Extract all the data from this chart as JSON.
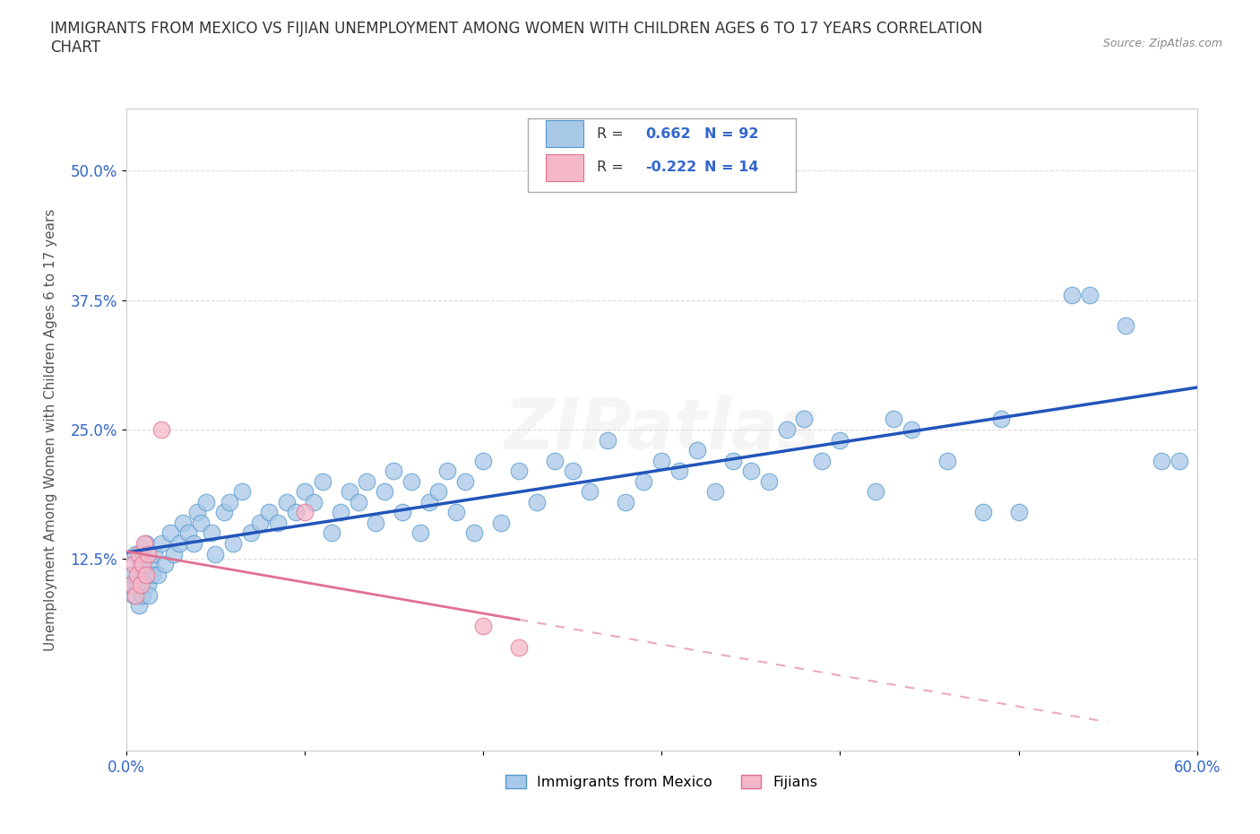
{
  "title": "IMMIGRANTS FROM MEXICO VS FIJIAN UNEMPLOYMENT AMONG WOMEN WITH CHILDREN AGES 6 TO 17 YEARS CORRELATION\nCHART",
  "source": "Source: ZipAtlas.com",
  "ylabel": "Unemployment Among Women with Children Ages 6 to 17 years",
  "xlim": [
    0.0,
    0.6
  ],
  "ylim": [
    -0.06,
    0.56
  ],
  "yticks": [
    0.125,
    0.25,
    0.375,
    0.5
  ],
  "ytick_labels": [
    "12.5%",
    "25.0%",
    "37.5%",
    "50.0%"
  ],
  "xticks": [
    0.0,
    0.1,
    0.2,
    0.3,
    0.4,
    0.5,
    0.6
  ],
  "xtick_labels": [
    "0.0%",
    "",
    "",
    "",
    "",
    "",
    "60.0%"
  ],
  "mexico_color": "#a8c8e8",
  "mexico_edge": "#5599cc",
  "fijian_color": "#f5b8c8",
  "fijian_edge": "#e07090",
  "mexico_line_color": "#2255bb",
  "fijian_line_color": "#e07090",
  "R_mexico": 0.662,
  "N_mexico": 92,
  "R_fijian": -0.222,
  "N_fijian": 14,
  "watermark": "ZIPatlas",
  "legend_R_color": "#3366cc",
  "background_color": "#ffffff",
  "grid_color": "#cccccc",
  "mexico_points": [
    [
      0.002,
      0.1
    ],
    [
      0.003,
      0.11
    ],
    [
      0.004,
      0.09
    ],
    [
      0.005,
      0.13
    ],
    [
      0.006,
      0.1
    ],
    [
      0.007,
      0.08
    ],
    [
      0.008,
      0.12
    ],
    [
      0.009,
      0.09
    ],
    [
      0.01,
      0.11
    ],
    [
      0.011,
      0.14
    ],
    [
      0.012,
      0.1
    ],
    [
      0.013,
      0.09
    ],
    [
      0.014,
      0.12
    ],
    [
      0.015,
      0.11
    ],
    [
      0.016,
      0.13
    ],
    [
      0.018,
      0.11
    ],
    [
      0.02,
      0.14
    ],
    [
      0.022,
      0.12
    ],
    [
      0.025,
      0.15
    ],
    [
      0.027,
      0.13
    ],
    [
      0.03,
      0.14
    ],
    [
      0.032,
      0.16
    ],
    [
      0.035,
      0.15
    ],
    [
      0.038,
      0.14
    ],
    [
      0.04,
      0.17
    ],
    [
      0.042,
      0.16
    ],
    [
      0.045,
      0.18
    ],
    [
      0.048,
      0.15
    ],
    [
      0.05,
      0.13
    ],
    [
      0.055,
      0.17
    ],
    [
      0.058,
      0.18
    ],
    [
      0.06,
      0.14
    ],
    [
      0.065,
      0.19
    ],
    [
      0.07,
      0.15
    ],
    [
      0.075,
      0.16
    ],
    [
      0.08,
      0.17
    ],
    [
      0.085,
      0.16
    ],
    [
      0.09,
      0.18
    ],
    [
      0.095,
      0.17
    ],
    [
      0.1,
      0.19
    ],
    [
      0.105,
      0.18
    ],
    [
      0.11,
      0.2
    ],
    [
      0.115,
      0.15
    ],
    [
      0.12,
      0.17
    ],
    [
      0.125,
      0.19
    ],
    [
      0.13,
      0.18
    ],
    [
      0.135,
      0.2
    ],
    [
      0.14,
      0.16
    ],
    [
      0.145,
      0.19
    ],
    [
      0.15,
      0.21
    ],
    [
      0.155,
      0.17
    ],
    [
      0.16,
      0.2
    ],
    [
      0.165,
      0.15
    ],
    [
      0.17,
      0.18
    ],
    [
      0.175,
      0.19
    ],
    [
      0.18,
      0.21
    ],
    [
      0.185,
      0.17
    ],
    [
      0.19,
      0.2
    ],
    [
      0.195,
      0.15
    ],
    [
      0.2,
      0.22
    ],
    [
      0.21,
      0.16
    ],
    [
      0.22,
      0.21
    ],
    [
      0.23,
      0.18
    ],
    [
      0.24,
      0.22
    ],
    [
      0.25,
      0.21
    ],
    [
      0.26,
      0.19
    ],
    [
      0.27,
      0.24
    ],
    [
      0.28,
      0.18
    ],
    [
      0.29,
      0.2
    ],
    [
      0.3,
      0.22
    ],
    [
      0.31,
      0.21
    ],
    [
      0.32,
      0.23
    ],
    [
      0.33,
      0.19
    ],
    [
      0.34,
      0.22
    ],
    [
      0.35,
      0.21
    ],
    [
      0.36,
      0.2
    ],
    [
      0.37,
      0.25
    ],
    [
      0.38,
      0.26
    ],
    [
      0.39,
      0.22
    ],
    [
      0.4,
      0.24
    ],
    [
      0.42,
      0.19
    ],
    [
      0.43,
      0.26
    ],
    [
      0.44,
      0.25
    ],
    [
      0.46,
      0.22
    ],
    [
      0.48,
      0.17
    ],
    [
      0.49,
      0.26
    ],
    [
      0.5,
      0.17
    ],
    [
      0.53,
      0.38
    ],
    [
      0.54,
      0.38
    ],
    [
      0.56,
      0.35
    ],
    [
      0.58,
      0.22
    ],
    [
      0.59,
      0.22
    ]
  ],
  "fijian_points": [
    [
      0.003,
      0.1
    ],
    [
      0.004,
      0.12
    ],
    [
      0.005,
      0.09
    ],
    [
      0.006,
      0.11
    ],
    [
      0.007,
      0.13
    ],
    [
      0.008,
      0.1
    ],
    [
      0.009,
      0.12
    ],
    [
      0.01,
      0.14
    ],
    [
      0.011,
      0.11
    ],
    [
      0.012,
      0.13
    ],
    [
      0.02,
      0.25
    ],
    [
      0.1,
      0.17
    ],
    [
      0.2,
      0.06
    ],
    [
      0.22,
      0.04
    ]
  ]
}
